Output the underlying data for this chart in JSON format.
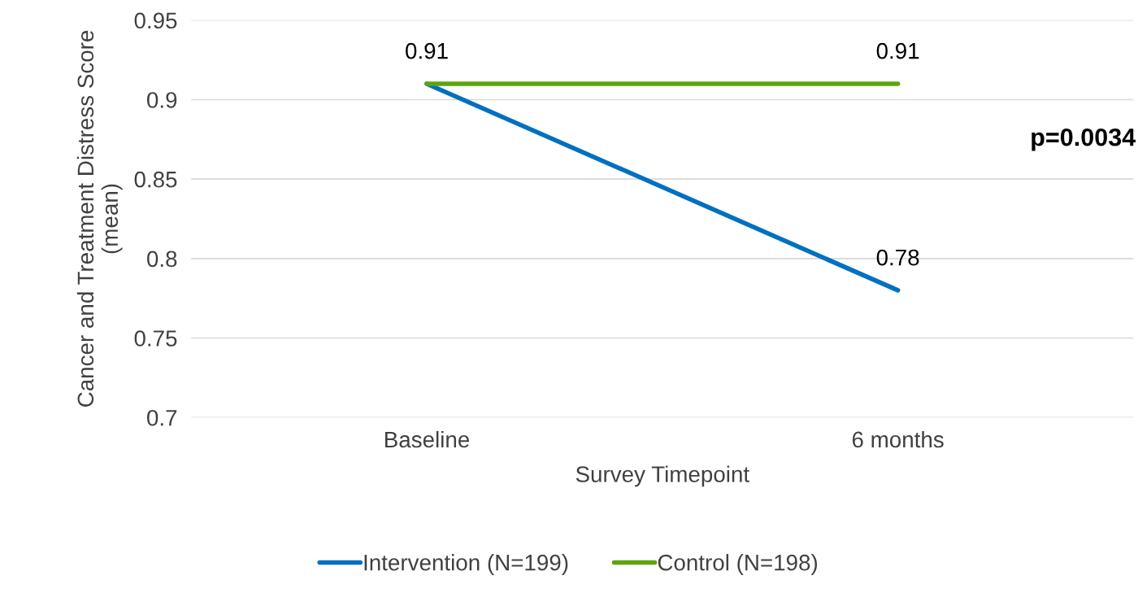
{
  "chart_data": {
    "type": "line",
    "xlabel": "Survey Timepoint",
    "ylabel": "Cancer and Treatment Distress Score (mean)",
    "categories": [
      "Baseline",
      "6 months"
    ],
    "series": [
      {
        "name": "Intervention (N=199)",
        "color": "#0070c0",
        "values": [
          0.91,
          0.78
        ],
        "value_labels": [
          null,
          "0.78"
        ]
      },
      {
        "name": "Control (N=198)",
        "color": "#5ea50e",
        "values": [
          0.91,
          0.91
        ],
        "value_labels": [
          "0.91",
          "0.91"
        ]
      }
    ],
    "ylim": [
      0.7,
      0.95
    ],
    "yticks": [
      0.7,
      0.75,
      0.8,
      0.85,
      0.9,
      0.95
    ],
    "grid": "y",
    "legend": "bottom",
    "marker": "none",
    "line_style": "solid",
    "annotations": [
      "p=0.0034"
    ]
  }
}
